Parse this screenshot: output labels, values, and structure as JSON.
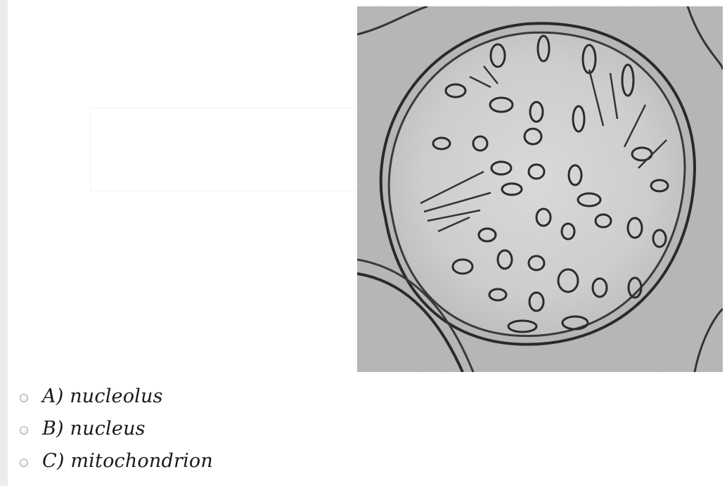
{
  "question": {
    "image": {
      "icon": "mitochondrion-micrograph-image"
    },
    "options": [
      {
        "label": "A) nucleolus",
        "selected": false
      },
      {
        "label": "B) nucleus",
        "selected": false
      },
      {
        "label": "C) mitochondrion",
        "selected": false
      }
    ]
  }
}
